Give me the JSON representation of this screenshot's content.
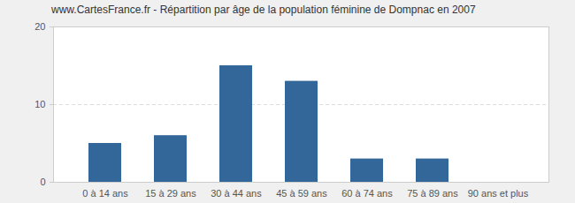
{
  "chart_data": {
    "type": "bar",
    "title": "www.CartesFrance.fr - Répartition par âge de la population féminine de Dompnac en 2007",
    "categories": [
      "0 à 14 ans",
      "15 à 29 ans",
      "30 à 44 ans",
      "45 à 59 ans",
      "60 à 74 ans",
      "75 à 89 ans",
      "90 ans et plus"
    ],
    "values": [
      5,
      6,
      15,
      13,
      3,
      3,
      0
    ],
    "color": "#336699",
    "ylim": [
      0,
      20
    ],
    "yticks": [
      0,
      10,
      20
    ],
    "grid": true
  }
}
